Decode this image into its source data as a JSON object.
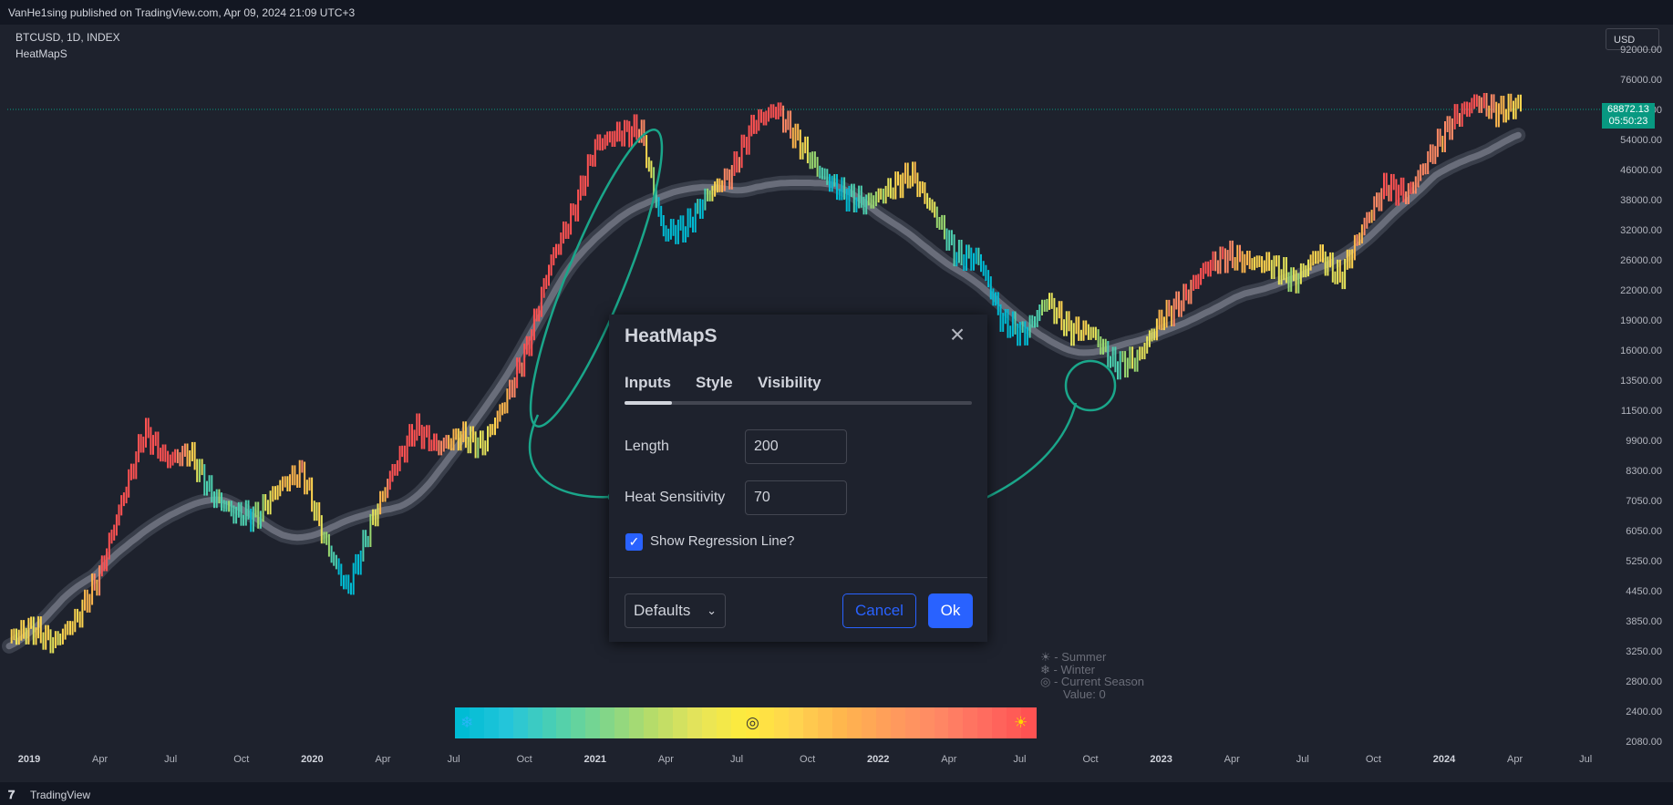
{
  "header": {
    "published": "VanHe1sing published on TradingView.com, Apr 09, 2024 21:09 UTC+3"
  },
  "chart_header": {
    "symbol": "BTCUSD, 1D, INDEX",
    "indicator": "HeatMapS"
  },
  "price_axis": {
    "currency": "USD",
    "ticks": [
      "92000.00",
      "76000.00",
      "64000.00",
      "54000.00",
      "46000.00",
      "38000.00",
      "32000.00",
      "26000.00",
      "22000.00",
      "19000.00",
      "16000.00",
      "13500.00",
      "11500.00",
      "9900.00",
      "8300.00",
      "7050.00",
      "6050.00",
      "5250.00",
      "4450.00",
      "3850.00",
      "3250.00",
      "2800.00",
      "2400.00",
      "2080.00"
    ],
    "current_price": "68872.13",
    "countdown": "05:50:23"
  },
  "time_axis": {
    "ticks": [
      {
        "label": "2019",
        "bold": true
      },
      {
        "label": "Apr",
        "bold": false
      },
      {
        "label": "Jul",
        "bold": false
      },
      {
        "label": "Oct",
        "bold": false
      },
      {
        "label": "2020",
        "bold": true
      },
      {
        "label": "Apr",
        "bold": false
      },
      {
        "label": "Jul",
        "bold": false
      },
      {
        "label": "Oct",
        "bold": false
      },
      {
        "label": "2021",
        "bold": true
      },
      {
        "label": "Apr",
        "bold": false
      },
      {
        "label": "Jul",
        "bold": false
      },
      {
        "label": "Oct",
        "bold": false
      },
      {
        "label": "2022",
        "bold": true
      },
      {
        "label": "Apr",
        "bold": false
      },
      {
        "label": "Jul",
        "bold": false
      },
      {
        "label": "Oct",
        "bold": false
      },
      {
        "label": "2023",
        "bold": true
      },
      {
        "label": "Apr",
        "bold": false
      },
      {
        "label": "Jul",
        "bold": false
      },
      {
        "label": "Oct",
        "bold": false
      },
      {
        "label": "2024",
        "bold": true
      },
      {
        "label": "Apr",
        "bold": false
      },
      {
        "label": "Jul",
        "bold": false
      }
    ]
  },
  "dialog": {
    "title": "HeatMapS",
    "tabs": [
      "Inputs",
      "Style",
      "Visibility"
    ],
    "active_tab": "Inputs",
    "length_label": "Length",
    "length_value": "200",
    "sensitivity_label": "Heat Sensitivity",
    "sensitivity_value": "70",
    "regression_label": "Show Regression Line?",
    "regression_checked": true,
    "defaults_label": "Defaults",
    "cancel_label": "Cancel",
    "ok_label": "Ok"
  },
  "season_legend": {
    "summer": "☀ - Summer",
    "winter": "❄ - Winter",
    "current": "◎ - Current Season",
    "value": "Value: 0"
  },
  "heat_scale": {
    "cold_icon": "❄",
    "current_icon": "◎",
    "hot_icon": "☀",
    "colors": [
      "#00bcd4",
      "#26c6da",
      "#4dd0b0",
      "#7fd68a",
      "#b5dc6a",
      "#e6e45a",
      "#ffeb3b",
      "#ffd54f",
      "#ffb74d",
      "#ff9e5a",
      "#ff8a65",
      "#ff6e60",
      "#ff5252"
    ]
  },
  "footer": {
    "brand": "TradingView"
  },
  "chart_data": {
    "type": "line",
    "title": "",
    "series": [
      {
        "values": [
          3700,
          3900,
          3600,
          4100,
          5200,
          7800,
          11500,
          9800,
          10200,
          8100,
          7300,
          7200,
          8500,
          9200,
          6300,
          4800,
          6800,
          9200,
          11700,
          10500,
          11200,
          10600,
          13500,
          18300,
          29000,
          38000,
          55000,
          58500,
          60000,
          34000,
          35000,
          42000,
          47000,
          62000,
          67000,
          56000,
          47000,
          42000,
          40000,
          43000,
          47000,
          38000,
          30000,
          29500,
          21000,
          19500,
          23500,
          20000,
          19800,
          16500,
          17000,
          21000,
          23500,
          28000,
          30000,
          29000,
          28500,
          26000,
          30500,
          26500,
          35000,
          44000,
          42000,
          52000,
          63000,
          70000,
          66000,
          69000
        ]
      }
    ],
    "yscale": "log",
    "ylim": [
      2080,
      92000
    ]
  }
}
